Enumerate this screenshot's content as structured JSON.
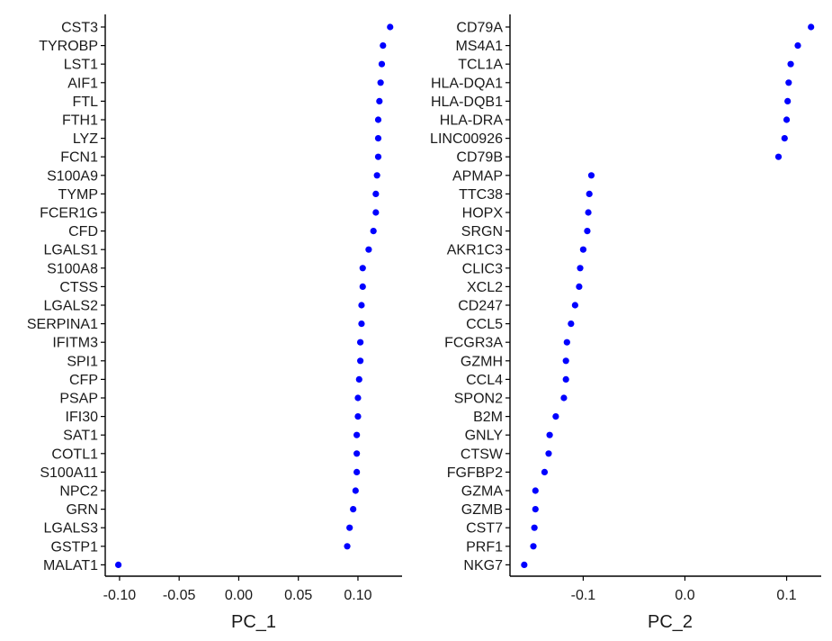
{
  "chart_data": [
    {
      "type": "scatter",
      "xlabel": "PC_1",
      "xticks": [
        -0.1,
        -0.05,
        0.0,
        0.05,
        0.1
      ],
      "xtick_labels": [
        "-0.10",
        "-0.05",
        "0.00",
        "0.05",
        "0.10"
      ],
      "xlim": [
        -0.112,
        0.137
      ],
      "point_color": "#0000ff",
      "genes": [
        "CST3",
        "TYROBP",
        "LST1",
        "AIF1",
        "FTL",
        "FTH1",
        "LYZ",
        "FCN1",
        "S100A9",
        "TYMP",
        "FCER1G",
        "CFD",
        "LGALS1",
        "S100A8",
        "CTSS",
        "LGALS2",
        "SERPINA1",
        "IFITM3",
        "SPI1",
        "CFP",
        "PSAP",
        "IFI30",
        "SAT1",
        "COTL1",
        "S100A11",
        "NPC2",
        "GRN",
        "LGALS3",
        "GSTP1",
        "MALAT1"
      ],
      "values": [
        0.127,
        0.121,
        0.12,
        0.119,
        0.118,
        0.117,
        0.117,
        0.117,
        0.116,
        0.115,
        0.115,
        0.113,
        0.109,
        0.104,
        0.104,
        0.103,
        0.103,
        0.102,
        0.102,
        0.101,
        0.1,
        0.1,
        0.099,
        0.099,
        0.099,
        0.098,
        0.096,
        0.093,
        0.091,
        -0.101
      ]
    },
    {
      "type": "scatter",
      "xlabel": "PC_2",
      "xticks": [
        -0.1,
        0.0,
        0.1
      ],
      "xtick_labels": [
        "-0.1",
        "0.0",
        "0.1"
      ],
      "xlim": [
        -0.172,
        0.134
      ],
      "point_color": "#0000ff",
      "genes": [
        "CD79A",
        "MS4A1",
        "TCL1A",
        "HLA-DQA1",
        "HLA-DQB1",
        "HLA-DRA",
        "LINC00926",
        "CD79B",
        "APMAP",
        "TTC38",
        "HOPX",
        "SRGN",
        "AKR1C3",
        "CLIC3",
        "XCL2",
        "CD247",
        "CCL5",
        "FCGR3A",
        "GZMH",
        "CCL4",
        "SPON2",
        "B2M",
        "GNLY",
        "CTSW",
        "FGFBP2",
        "GZMA",
        "GZMB",
        "CST7",
        "PRF1",
        "NKG7"
      ],
      "values": [
        0.124,
        0.111,
        0.104,
        0.102,
        0.101,
        0.1,
        0.098,
        0.092,
        -0.092,
        -0.094,
        -0.095,
        -0.096,
        -0.1,
        -0.103,
        -0.104,
        -0.108,
        -0.112,
        -0.116,
        -0.117,
        -0.117,
        -0.119,
        -0.127,
        -0.133,
        -0.134,
        -0.138,
        -0.147,
        -0.147,
        -0.148,
        -0.149,
        -0.158
      ]
    }
  ]
}
